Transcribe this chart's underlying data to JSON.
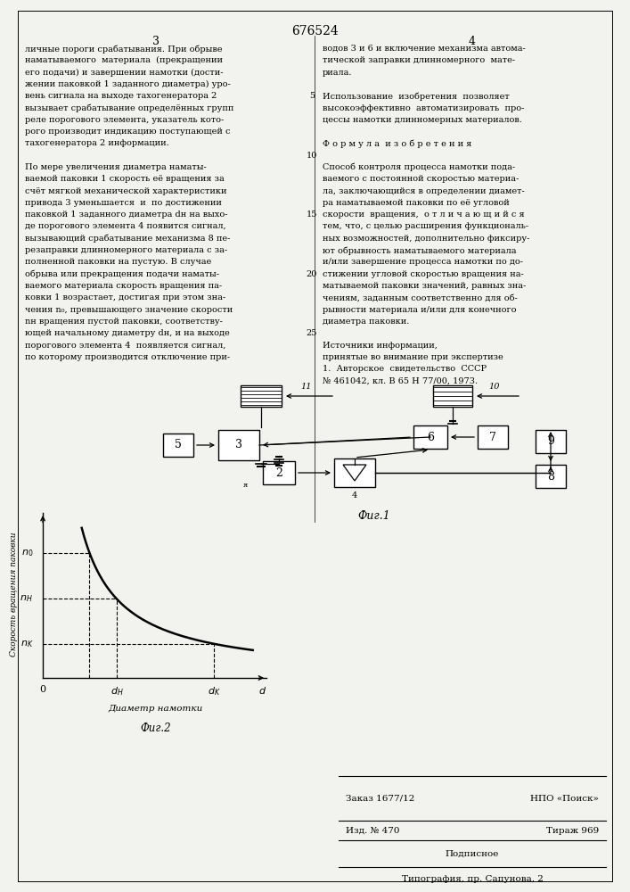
{
  "page_width": 7.07,
  "page_height": 10.0,
  "bg_color": "#f2f2ee",
  "patent_number": "676524",
  "col_numbers": [
    "3",
    "4"
  ],
  "left_text": [
    "личные пороги срабатывания. При обрыве",
    "наматываемого  материала  (прекращении",
    "его подачи) и завершении намотки (дости-",
    "жении паковкой 1 заданного диаметра) уро-",
    "вень сигнала на выходе тахогенератора 2",
    "вызывает срабатывание определённых групп",
    "реле порогового элемента, указатель кото-",
    "рого производит индикацию поступающей с",
    "тахогенератора 2 информации.",
    "",
    "По мере увеличения диаметра наматы-",
    "ваемой паковки 1 скорость её вращения за",
    "счёт мягкой механической характеристики",
    "привода 3 уменьшается  и  по достижении",
    "паковкой 1 заданного диаметра dн на выхо-",
    "де порогового элемента 4 появится сигнал,",
    "вызывающий срабатывание механизма 8 пе-",
    "резаправки длинномерного материала с за-",
    "полненной паковки на пустую. В случае",
    "обрыва или прекращения подачи наматы-",
    "ваемого материала скорость вращения па-",
    "ковки 1 возрастает, достигая при этом зна-",
    "чения n₀, превышающего значение скорости",
    "nн вращения пустой паковки, соответству-",
    "ющей начальному диаметру dн, и на выходе",
    "порогового элемента 4  появляется сигнал,",
    "по которому производится отключение при-"
  ],
  "right_text": [
    "водов 3 и 6 и включение механизма автома-",
    "тической заправки длинномерного  мате-",
    "риала.",
    "",
    "Использование  изобретения  позволяет",
    "высокоэффективно  автоматизировать  про-",
    "цессы намотки длинномерных материалов.",
    "",
    "Ф о р м у л а  и з о б р е т е н и я",
    "",
    "Способ контроля процесса намотки пода-",
    "ваемого с постоянной скоростью материа-",
    "ла, заключающийся в определении диамет-",
    "ра наматываемой паковки по её угловой",
    "скорости  вращения,  о т л и ч а ю щ и й с я",
    "тем, что, с целью расширения функциональ-",
    "ных возможностей, дополнительно фиксиру-",
    "ют обрывность наматываемого материала",
    "и/или завершение процесса намотки по до-",
    "стижении угловой скоростью вращения на-",
    "матываемой паковки значений, равных зна-",
    "чениям, заданным соответственно для об-",
    "рывности материала и/или для конечного",
    "диаметра паковки.",
    "",
    "Источники информации,",
    "принятые во внимание при экспертизе",
    "1.  Авторское  свидетельство  СССР",
    "№ 461042, кл. В 65 Н 77/00, 1973."
  ],
  "fig1_caption": "Фиг.1",
  "fig2_caption": "Фиг.2",
  "graph_ylabel": "Скорость вращения паковки",
  "graph_xlabel": "Диаметр намотки",
  "bottom_line1": "Заказ 1677/12",
  "bottom_line1r": "НПО «Поиск»",
  "bottom_line2": "Изд. № 470",
  "bottom_line2r": "Тираж 969",
  "bottom_line3": "Подписное",
  "bottom_line4": "Типография, пр. Сапунова, 2"
}
